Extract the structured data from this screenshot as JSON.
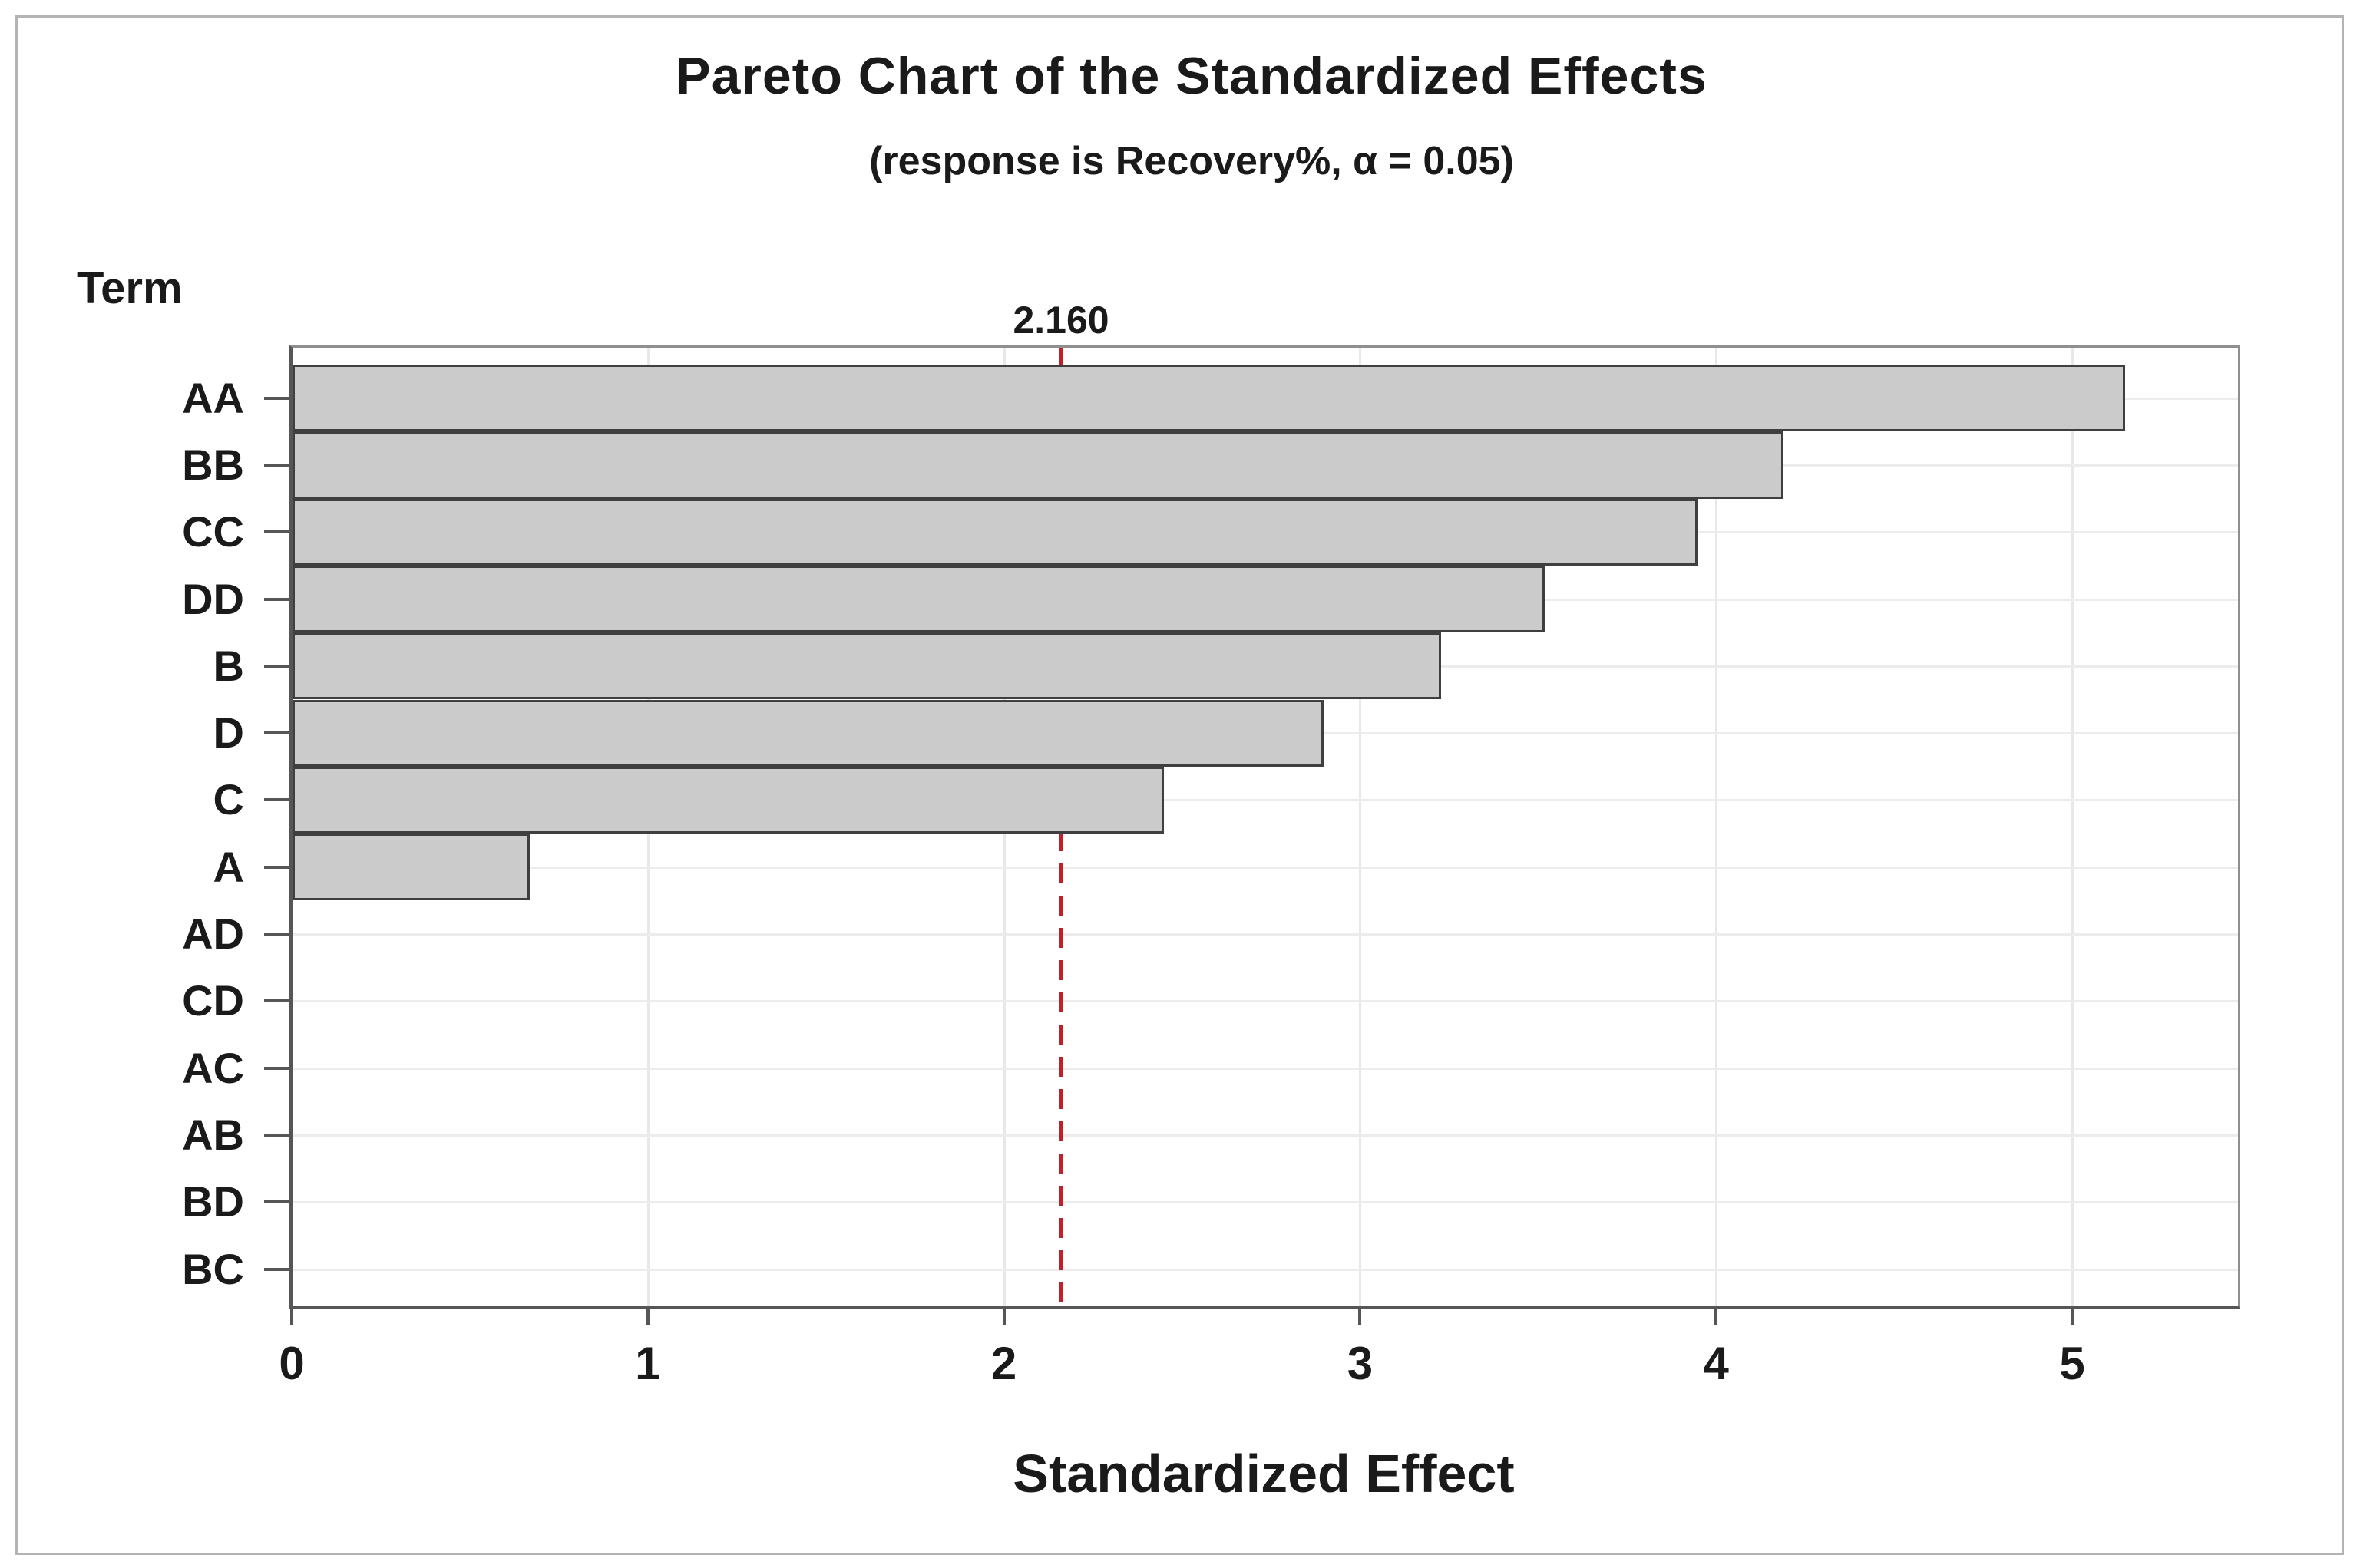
{
  "title": "Pareto Chart of the Standardized Effects",
  "subtitle": "(response is Recovery%, α = 0.05)",
  "response": "Recovery%",
  "alpha": "0.05",
  "y_axis_title": "Term",
  "x_axis_title": "Standardized Effect",
  "reference_line": {
    "value": 2.16,
    "label": "2.160"
  },
  "colors": {
    "bar_fill": "#cbcbcb",
    "bar_border": "#3f3f3f",
    "reference_red": "#c02128",
    "axis": "#565656",
    "gridline": "#e8e8e8",
    "text": "#1a1a1a",
    "frame": "#b3b3b3"
  },
  "chart_data": {
    "type": "bar",
    "orientation": "horizontal",
    "title": "Pareto Chart of the Standardized Effects",
    "subtitle": "(response is Recovery%, α = 0.05)",
    "xlabel": "Standardized Effect",
    "ylabel": "Term",
    "categories": [
      "AA",
      "BB",
      "CC",
      "DD",
      "B",
      "D",
      "C",
      "A",
      "AD",
      "CD",
      "AC",
      "AB",
      "BD",
      "BC"
    ],
    "values": [
      5.14,
      4.18,
      3.94,
      3.51,
      3.22,
      2.89,
      2.44,
      0.66,
      0,
      0,
      0,
      0,
      0,
      0
    ],
    "reference_value": 2.16,
    "reference_label": "2.160",
    "x_ticks": [
      0,
      1,
      2,
      3,
      4,
      5
    ],
    "xlim": [
      0,
      5.47
    ],
    "grid": true,
    "legend": false
  }
}
